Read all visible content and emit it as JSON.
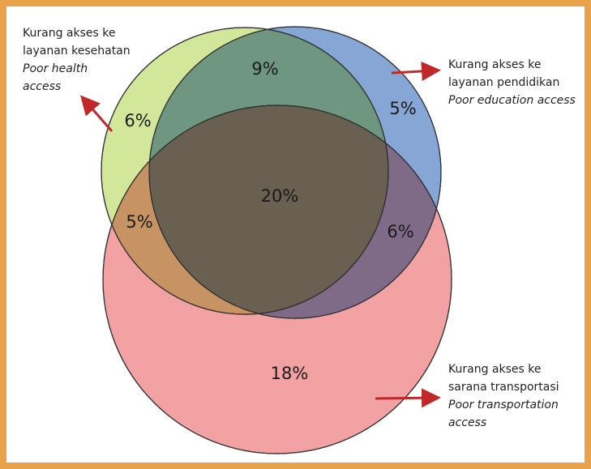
{
  "sets": [
    {
      "label": "Kurang akses ke layanan kesehatan",
      "label_en": "Poor health access"
    },
    {
      "label": "Kurang akses ke layanan pendidikan",
      "label_en": "Poor education access"
    },
    {
      "label": "Kurang akses ke sarana transportasi",
      "label_en": "Poor transportation access"
    }
  ],
  "regions": {
    "health_only": "6%",
    "health_education": "9%",
    "education_only": "5%",
    "health_transport": "5%",
    "all_three": "20%",
    "education_transport": "6%",
    "transport_only": "18%"
  }
}
